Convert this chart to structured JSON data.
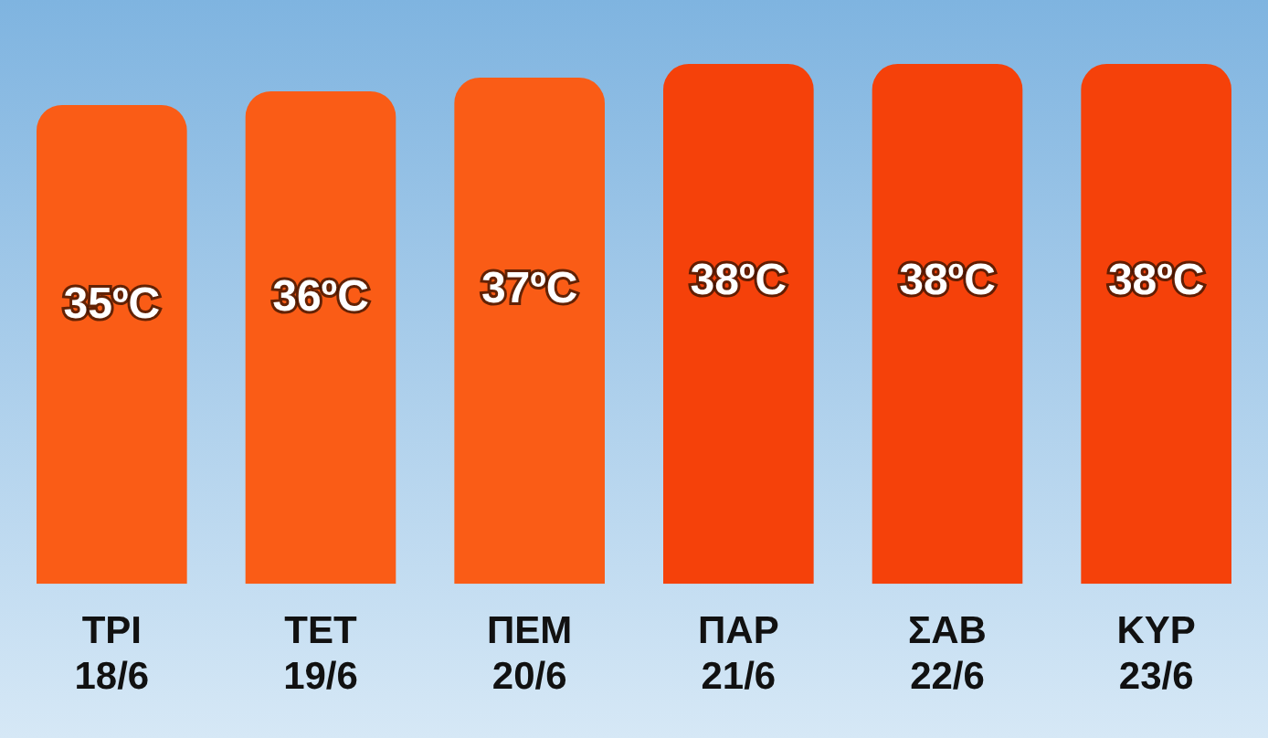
{
  "chart_data": {
    "type": "bar",
    "categories": [
      "ΤΡΙ\n18/6",
      "ΤΕΤ\n19/6",
      "ΠΕΜ\n20/6",
      "ΠΑΡ\n21/6",
      "ΣΑΒ\n22/6",
      "ΚΥΡ\n23/6"
    ],
    "values": [
      35,
      36,
      37,
      38,
      38,
      38
    ],
    "colors": [
      "#fa5c16",
      "#fa5c16",
      "#fa5c16",
      "#f5410a",
      "#f5410a",
      "#f5410a"
    ],
    "value_labels": [
      "35ºC",
      "36ºC",
      "37ºC",
      "38ºC",
      "38ºC",
      "38ºC"
    ],
    "grid": false,
    "legend": false
  }
}
